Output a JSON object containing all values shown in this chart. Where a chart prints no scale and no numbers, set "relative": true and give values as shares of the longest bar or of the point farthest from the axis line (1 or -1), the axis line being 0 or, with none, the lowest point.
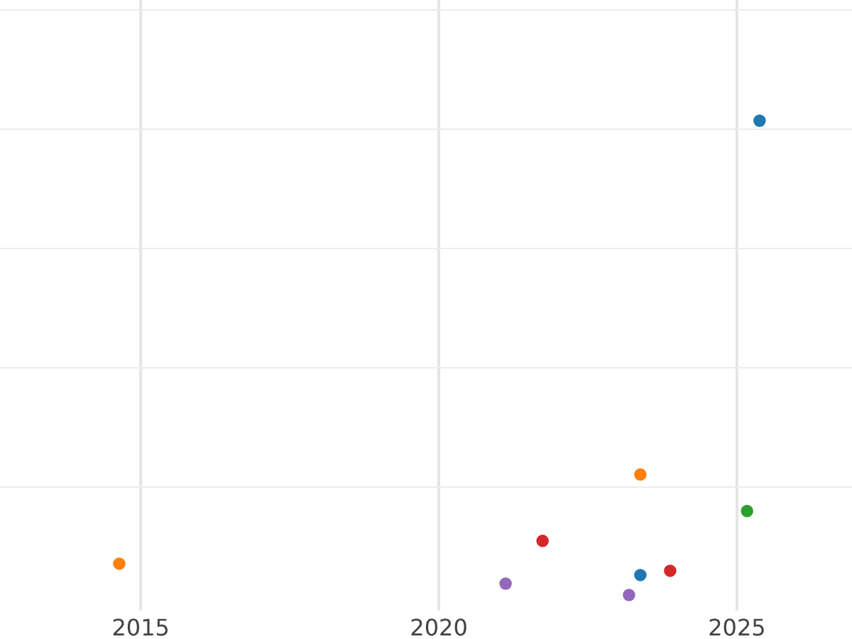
{
  "chart_data": {
    "type": "scatter",
    "relative": true,
    "xlim": [
      2012.64,
      2026.93
    ],
    "xticks": [
      2015,
      2020,
      2025
    ],
    "grid": true,
    "marker": "circle",
    "series": [
      {
        "color": "#1f77b4",
        "x": [
          2025.38,
          2023.38
        ],
        "values": [
          1,
          0.042
        ]
      },
      {
        "color": "#ff7f0e",
        "x": [
          2014.64,
          2023.38
        ],
        "values": [
          0.066,
          0.254
        ]
      },
      {
        "color": "#2ca02c",
        "x": [
          2025.17
        ],
        "values": [
          0.177
        ]
      },
      {
        "color": "#d62728",
        "x": [
          2021.74,
          2023.88
        ],
        "values": [
          0.114,
          0.051
        ]
      },
      {
        "color": "#9467bd",
        "x": [
          2021.12,
          2023.19
        ],
        "values": [
          0.024,
          0
        ]
      }
    ]
  }
}
